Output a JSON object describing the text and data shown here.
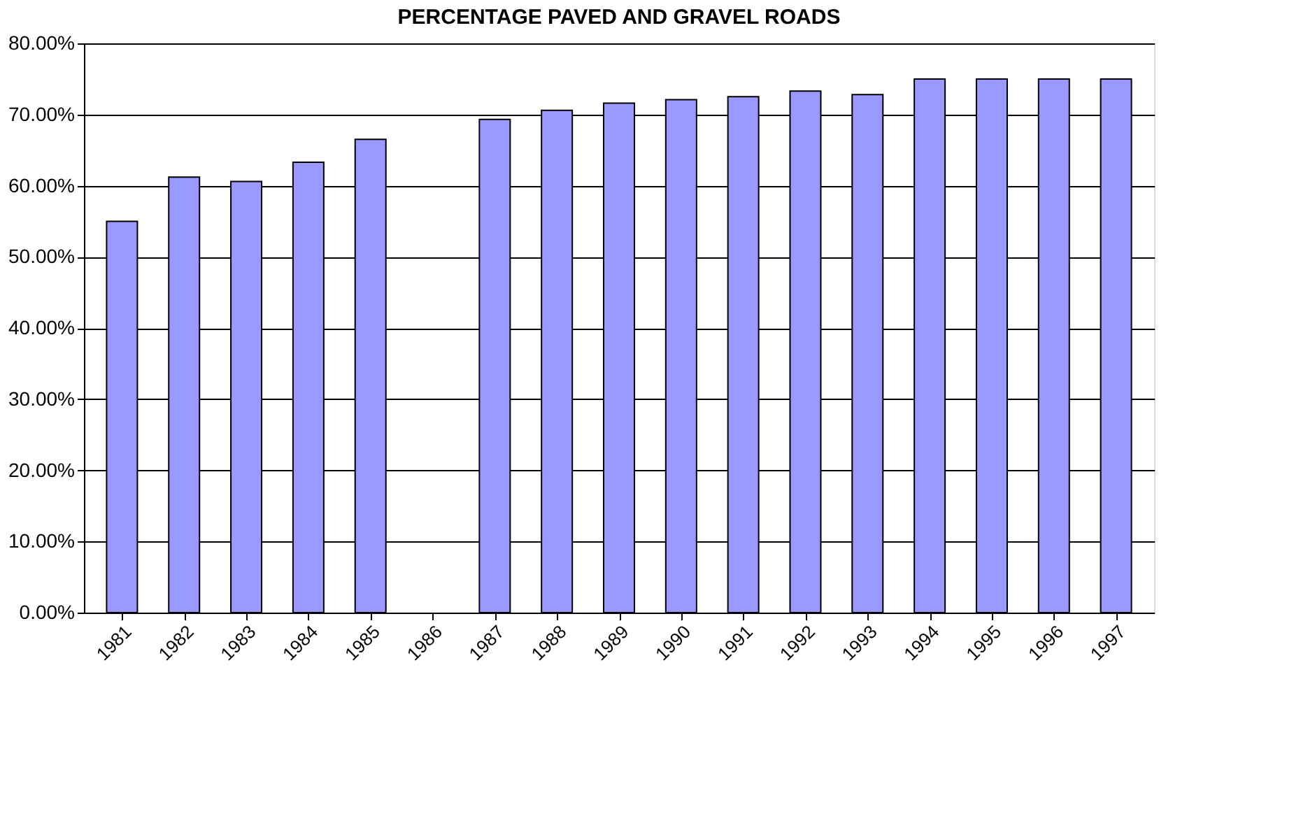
{
  "chart_data": {
    "type": "bar",
    "title": "PERCENTAGE PAVED AND GRAVEL ROADS",
    "categories": [
      "1981",
      "1982",
      "1983",
      "1984",
      "1985",
      "1986",
      "1987",
      "1988",
      "1989",
      "1990",
      "1991",
      "1992",
      "1993",
      "1994",
      "1995",
      "1996",
      "1997"
    ],
    "values": [
      55.0,
      61.2,
      60.6,
      63.3,
      66.5,
      null,
      69.3,
      70.6,
      71.6,
      72.1,
      72.5,
      73.3,
      72.8,
      75.0,
      75.0,
      75.0,
      75.0
    ],
    "color": "#9999ff",
    "ylim": [
      0,
      80
    ],
    "yticks": [
      {
        "value": 0,
        "label": "0.00%"
      },
      {
        "value": 10,
        "label": "10.00%"
      },
      {
        "value": 20,
        "label": "20.00%"
      },
      {
        "value": 30,
        "label": "30.00%"
      },
      {
        "value": 40,
        "label": "40.00%"
      },
      {
        "value": 50,
        "label": "50.00%"
      },
      {
        "value": 60,
        "label": "60.00%"
      },
      {
        "value": 70,
        "label": "70.00%"
      },
      {
        "value": 80,
        "label": "80.00%"
      }
    ],
    "grid": "y"
  }
}
